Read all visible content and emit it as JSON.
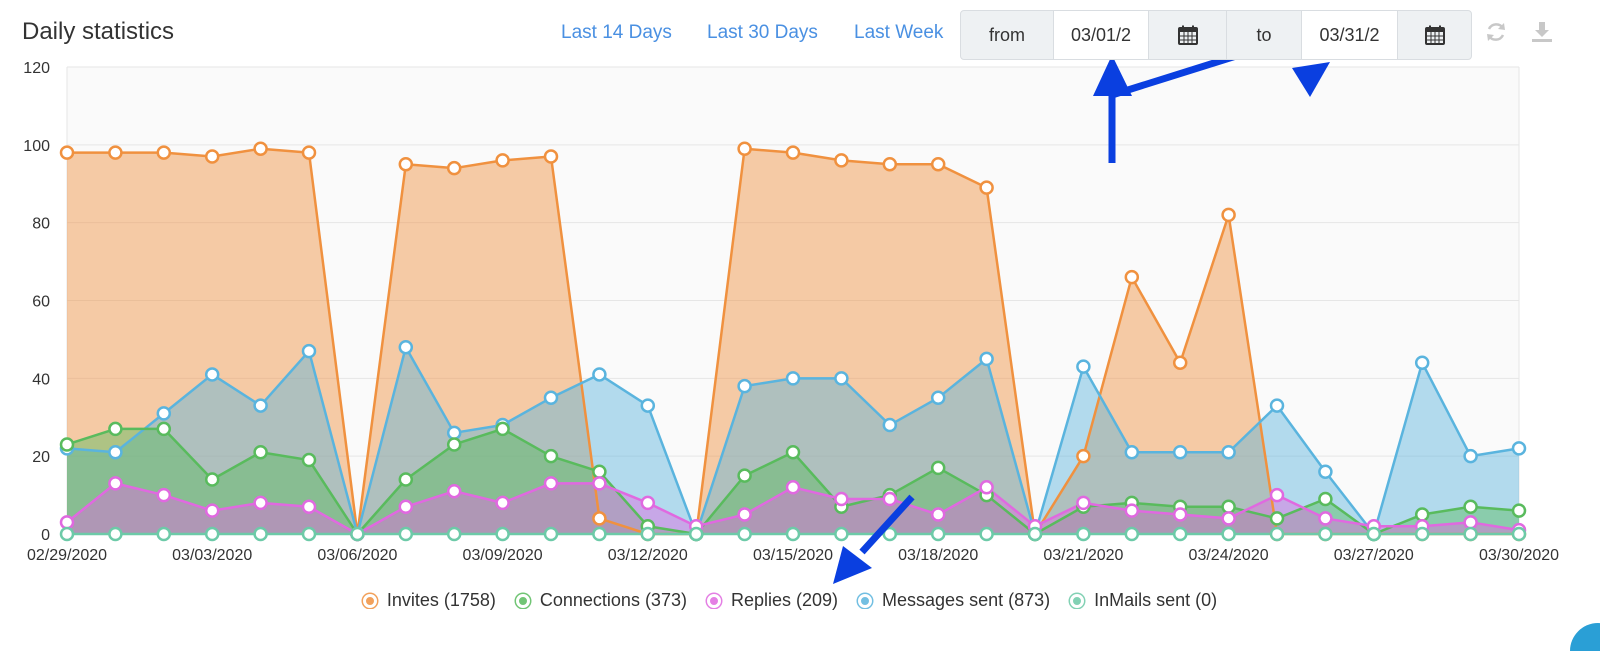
{
  "header": {
    "title": "Daily statistics",
    "quick_ranges": [
      "Last 14 Days",
      "Last 30 Days",
      "Last Week"
    ],
    "from_label": "from",
    "from_value": "03/01/2",
    "to_label": "to",
    "to_value": "03/31/2"
  },
  "colors": {
    "Invites": "#f0913f",
    "Connections": "#59bb5d",
    "Replies": "#e069e0",
    "Messages sent": "#5ab4de",
    "InMails sent": "#6dcaa8"
  },
  "chart_data": {
    "type": "area",
    "x": [
      "02/29/2020",
      "03/01/2020",
      "03/02/2020",
      "03/03/2020",
      "03/04/2020",
      "03/05/2020",
      "03/06/2020",
      "03/07/2020",
      "03/08/2020",
      "03/09/2020",
      "03/10/2020",
      "03/11/2020",
      "03/12/2020",
      "03/13/2020",
      "03/14/2020",
      "03/15/2020",
      "03/16/2020",
      "03/17/2020",
      "03/18/2020",
      "03/19/2020",
      "03/20/2020",
      "03/21/2020",
      "03/22/2020",
      "03/23/2020",
      "03/24/2020",
      "03/25/2020",
      "03/26/2020",
      "03/27/2020",
      "03/28/2020",
      "03/29/2020",
      "03/30/2020"
    ],
    "x_tick_labels": [
      "02/29/2020",
      "03/03/2020",
      "03/06/2020",
      "03/09/2020",
      "03/12/2020",
      "03/15/2020",
      "03/18/2020",
      "03/21/2020",
      "03/24/2020",
      "03/27/2020",
      "03/30/2020"
    ],
    "ylim": [
      0,
      120
    ],
    "y_ticks": [
      0,
      20,
      40,
      60,
      80,
      100,
      120
    ],
    "grid": true,
    "legend_position": "bottom",
    "series": [
      {
        "name": "Invites",
        "legend": "Invites (1758)",
        "values": [
          98,
          98,
          98,
          97,
          99,
          98,
          0,
          95,
          94,
          96,
          97,
          4,
          0,
          0,
          99,
          98,
          96,
          95,
          95,
          89,
          0,
          20,
          66,
          44,
          82,
          0,
          0,
          0,
          0,
          0,
          0
        ]
      },
      {
        "name": "Messages sent",
        "legend": "Messages sent (873)",
        "values": [
          22,
          21,
          31,
          41,
          33,
          47,
          0,
          48,
          26,
          28,
          35,
          41,
          33,
          0,
          38,
          40,
          40,
          28,
          35,
          45,
          0,
          43,
          21,
          21,
          21,
          33,
          16,
          0,
          44,
          20,
          22
        ]
      },
      {
        "name": "Connections",
        "legend": "Connections (373)",
        "values": [
          23,
          27,
          27,
          14,
          21,
          19,
          0,
          14,
          23,
          27,
          20,
          16,
          2,
          0,
          15,
          21,
          7,
          10,
          17,
          10,
          0,
          7,
          8,
          7,
          7,
          4,
          9,
          0,
          5,
          7,
          6
        ]
      },
      {
        "name": "Replies",
        "legend": "Replies (209)",
        "values": [
          3,
          13,
          10,
          6,
          8,
          7,
          0,
          7,
          11,
          8,
          13,
          13,
          8,
          2,
          5,
          12,
          9,
          9,
          5,
          12,
          2,
          8,
          6,
          5,
          4,
          10,
          4,
          2,
          2,
          3,
          1
        ]
      },
      {
        "name": "InMails sent",
        "legend": "InMails sent (0)",
        "values": [
          0,
          0,
          0,
          0,
          0,
          0,
          0,
          0,
          0,
          0,
          0,
          0,
          0,
          0,
          0,
          0,
          0,
          0,
          0,
          0,
          0,
          0,
          0,
          0,
          0,
          0,
          0,
          0,
          0,
          0,
          0
        ]
      }
    ],
    "legend_order": [
      "Invites",
      "Connections",
      "Replies",
      "Messages sent",
      "InMails sent"
    ]
  }
}
